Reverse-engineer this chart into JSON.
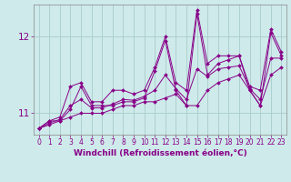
{
  "xlabel": "Windchill (Refroidissement éolien,°C)",
  "background_color": "#ceeaea",
  "grid_color": "#aacccc",
  "line_color": "#880088",
  "x_hours": [
    0,
    1,
    2,
    3,
    4,
    5,
    6,
    7,
    8,
    9,
    10,
    11,
    12,
    13,
    14,
    15,
    16,
    17,
    18,
    19,
    20,
    21,
    22,
    23
  ],
  "series": {
    "actual": [
      10.8,
      10.9,
      10.9,
      11.05,
      11.35,
      11.1,
      11.1,
      11.1,
      11.15,
      11.15,
      11.2,
      11.55,
      11.95,
      11.3,
      11.1,
      12.3,
      11.5,
      11.65,
      11.7,
      11.75,
      11.3,
      11.1,
      12.05,
      11.75
    ],
    "min": [
      10.8,
      10.85,
      10.9,
      10.95,
      11.0,
      11.0,
      11.0,
      11.05,
      11.1,
      11.1,
      11.15,
      11.15,
      11.2,
      11.25,
      11.1,
      11.1,
      11.3,
      11.4,
      11.45,
      11.5,
      11.3,
      11.1,
      11.5,
      11.6
    ],
    "max": [
      10.8,
      10.9,
      10.95,
      11.35,
      11.4,
      11.15,
      11.15,
      11.3,
      11.3,
      11.25,
      11.3,
      11.6,
      12.0,
      11.4,
      11.3,
      12.35,
      11.65,
      11.75,
      11.75,
      11.75,
      11.35,
      11.3,
      12.1,
      11.8
    ],
    "mean": [
      10.8,
      10.87,
      10.92,
      11.1,
      11.18,
      11.07,
      11.07,
      11.12,
      11.18,
      11.17,
      11.22,
      11.3,
      11.5,
      11.32,
      11.18,
      11.58,
      11.48,
      11.58,
      11.6,
      11.62,
      11.32,
      11.18,
      11.72,
      11.72
    ]
  },
  "ylim": [
    10.72,
    12.42
  ],
  "yticks": [
    11,
    12
  ],
  "xlim": [
    -0.5,
    23.5
  ],
  "xticks": [
    0,
    1,
    2,
    3,
    4,
    5,
    6,
    7,
    8,
    9,
    10,
    11,
    12,
    13,
    14,
    15,
    16,
    17,
    18,
    19,
    20,
    21,
    22,
    23
  ],
  "xlabel_fontsize": 6.5,
  "ytick_fontsize": 7.5,
  "xtick_fontsize": 5.5,
  "marker_size": 2.0,
  "line_width": 0.7
}
